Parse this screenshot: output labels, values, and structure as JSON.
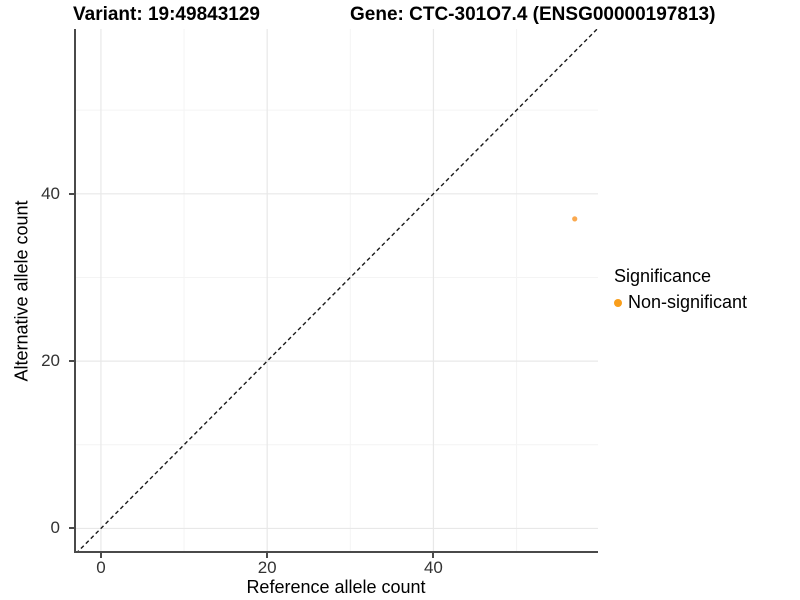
{
  "chart_data": {
    "type": "scatter",
    "titles": {
      "left": "Variant: 19:49843129",
      "right": "Gene: CTC-301O7.4 (ENSG00000197813)"
    },
    "xlabel": "Reference allele count",
    "ylabel": "Alternative allele count",
    "xlim": [
      -3,
      59.8
    ],
    "ylim": [
      -2.7,
      59.7
    ],
    "x_major_ticks": [
      0,
      20,
      40
    ],
    "y_major_ticks": [
      0,
      20,
      40
    ],
    "x_minor_ticks": [
      10,
      30,
      50
    ],
    "y_minor_ticks": [
      10,
      30,
      50
    ],
    "grid": true,
    "identity_line": {
      "style": "dashed",
      "color": "#1a1a1a",
      "from": -3,
      "to": 60
    },
    "series": [
      {
        "name": "Non-significant",
        "color": "#FAA94F",
        "point_radius": 2.6,
        "points": [
          {
            "x": 57,
            "y": 37
          }
        ]
      }
    ],
    "legend": {
      "title": "Significance",
      "position": "right",
      "items": [
        {
          "label": "Non-significant",
          "color": "#F99E1B"
        }
      ]
    }
  },
  "colors": {
    "axis_line": "#4a4a4a",
    "major_grid": "#E8E8E8",
    "minor_grid": "#F4F4F4",
    "tick_label": "#333333",
    "background": "#FFFFFF"
  }
}
